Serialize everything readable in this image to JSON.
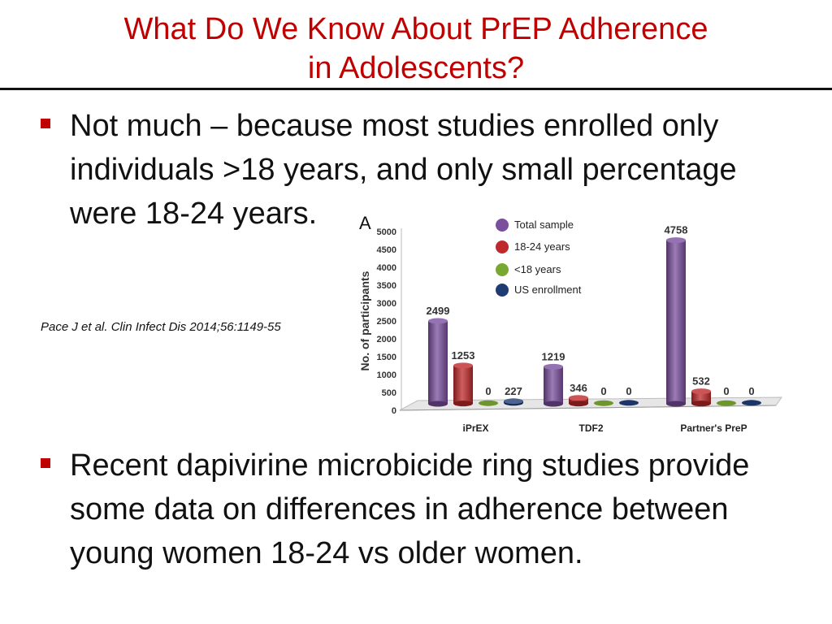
{
  "slide": {
    "title_line1": "What Do We Know About PrEP Adherence",
    "title_line2": "in Adolescents?",
    "bullet1": "Not much – because most studies enrolled only individuals >18 years, and only small percentage were 18-24 years.",
    "citation": "Pace J et al. Clin Infect Dis 2014;56:1149-55",
    "bullet2": "Recent dapivirine microbicide ring studies provide some data on differences in adherence between young women 18-24 vs older women."
  },
  "colors": {
    "title": "#c00000",
    "bullet_mark": "#c00000"
  },
  "chart_data": {
    "type": "bar",
    "panel_label": "A",
    "title": "",
    "xlabel": "",
    "ylabel": "No. of participants",
    "ylim": [
      0,
      5000
    ],
    "yticks": [
      0,
      500,
      1000,
      1500,
      2000,
      2500,
      3000,
      3500,
      4000,
      4500,
      5000
    ],
    "grid": false,
    "legend_position": "top-center",
    "categories": [
      "iPrEX",
      "TDF2",
      "Partner's PreP"
    ],
    "series": [
      {
        "name": "Total sample",
        "color": "#7b4f9e",
        "values": [
          2499,
          1219,
          4758
        ]
      },
      {
        "name": "18-24 years",
        "color": "#c0292b",
        "values": [
          1253,
          346,
          532
        ]
      },
      {
        "name": "<18 years",
        "color": "#79a832",
        "values": [
          0,
          0,
          0
        ]
      },
      {
        "name": "US enrollment",
        "color": "#1f3b73",
        "values": [
          227,
          0,
          0
        ]
      }
    ]
  }
}
